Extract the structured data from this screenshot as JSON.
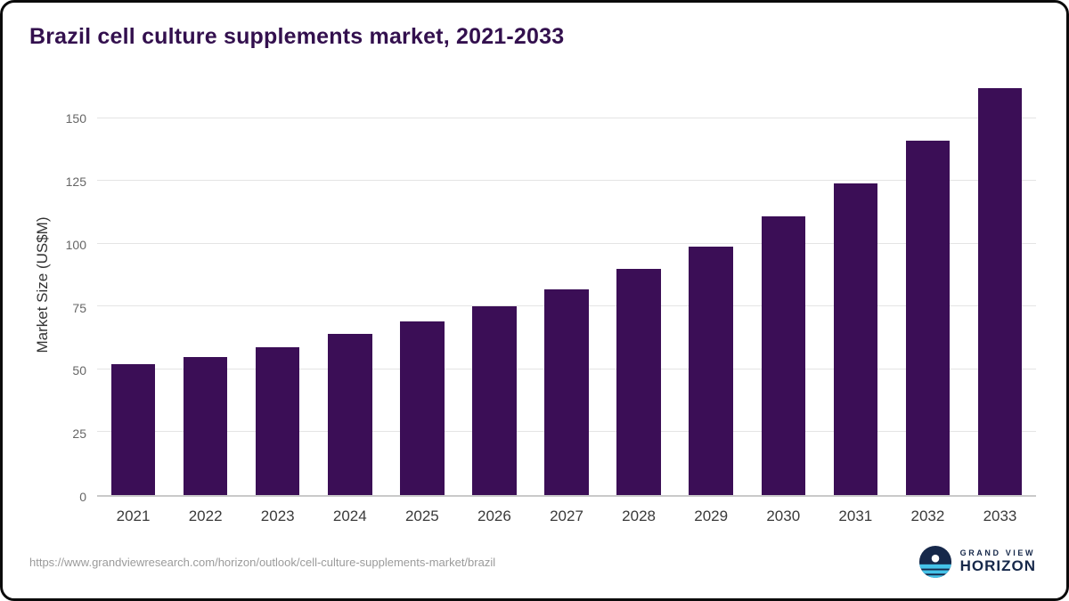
{
  "page": {
    "title": "Brazil cell culture supplements market, 2021-2033",
    "source_url": "https://www.grandviewresearch.com/horizon/outlook/cell-culture-supplements-market/brazil"
  },
  "logo": {
    "line1": "GRAND VIEW",
    "line2": "HORIZON"
  },
  "colors": {
    "bar": "#3b0e56",
    "title": "#33104e",
    "logo_navy": "#16284a",
    "logo_blue": "#45c2e8",
    "source_text": "#9b9b9b"
  },
  "chart_data": {
    "type": "bar",
    "title": "Brazil cell culture supplements market, 2021-2033",
    "categories": [
      "2021",
      "2022",
      "2023",
      "2024",
      "2025",
      "2026",
      "2027",
      "2028",
      "2029",
      "2030",
      "2031",
      "2032",
      "2033"
    ],
    "values": [
      52,
      55,
      59,
      64,
      69,
      75,
      82,
      90,
      99,
      111,
      124,
      141,
      162
    ],
    "xlabel": "",
    "ylabel": "Market Size (US$M)",
    "ylim": [
      0,
      168
    ],
    "yticks": [
      0,
      25,
      50,
      75,
      100,
      125,
      150
    ],
    "grid": true,
    "legend": "none",
    "bar_color": "#3b0e56"
  }
}
